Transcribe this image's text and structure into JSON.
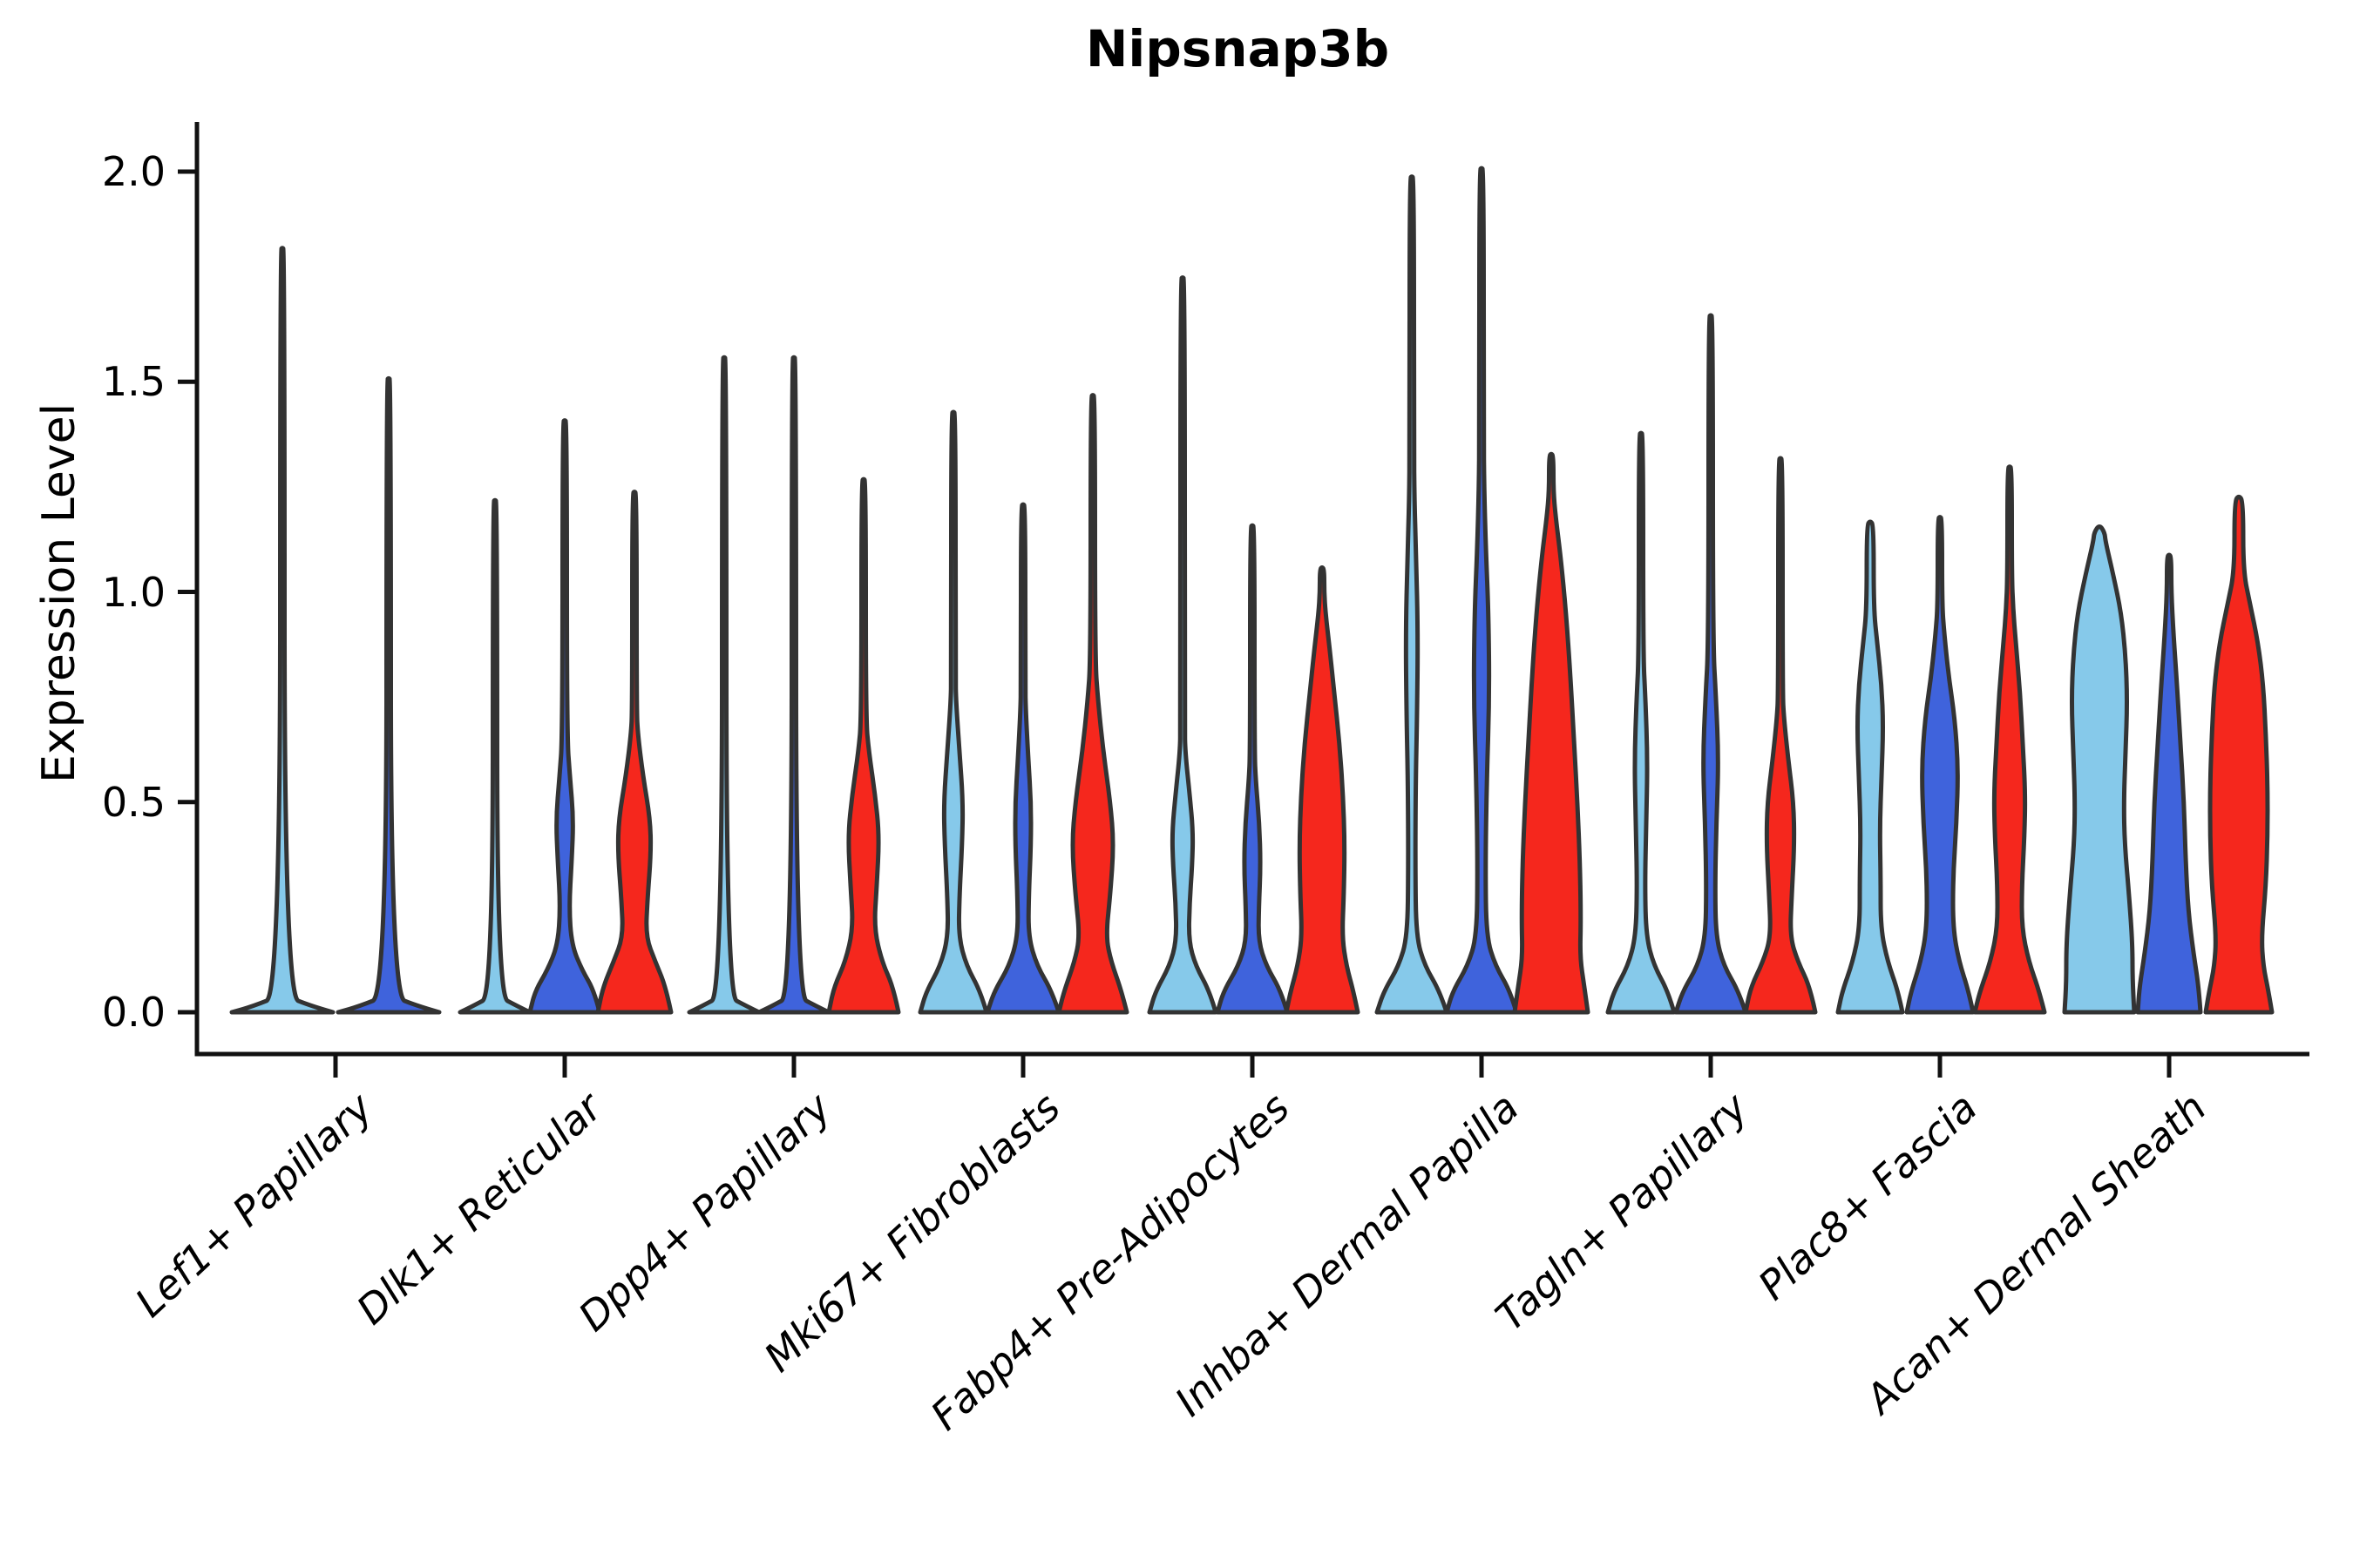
{
  "chart_data": {
    "type": "violin",
    "title": "Nipsnap3b",
    "xlabel": "",
    "ylabel": "Expression Level",
    "ylim": [
      0,
      2.1
    ],
    "yticks": [
      0,
      0.5,
      1,
      1.5,
      2
    ],
    "ytick_labels": [
      "0.0",
      "0.5",
      "1.0",
      "1.5",
      "2.0"
    ],
    "grid": false,
    "legend": "none",
    "axis_color": "#111111",
    "outline_color": "#333333",
    "categories": [
      "Lef1+ Papillary",
      "Dlk1+ Reticular",
      "Dpp4+ Papillary",
      "Mki67+ Fibroblasts",
      "Fabp4+ Pre-Adipocytes",
      "Inhba+ Dermal Papilla",
      "Tagln+ Papillary",
      "Plac8+ Fascia",
      "Acan+ Dermal Sheath"
    ],
    "conditions": [
      {
        "name": "sky-blue",
        "color": "#86C9EA"
      },
      {
        "name": "royal-blue",
        "color": "#3F63DC"
      },
      {
        "name": "red",
        "color": "#F5271D"
      }
    ],
    "violins": [
      {
        "category": 0,
        "condition": 0,
        "offset": -61,
        "max": 1.82,
        "profile": [
          [
            0,
            58
          ],
          [
            0.014,
            34
          ],
          [
            0.04,
            2.5
          ]
        ]
      },
      {
        "category": 0,
        "condition": 1,
        "offset": 61,
        "max": 1.51,
        "profile": [
          [
            0,
            58
          ],
          [
            0.014,
            34
          ],
          [
            0.04,
            2.5
          ]
        ]
      },
      {
        "category": 1,
        "condition": 0,
        "offset": -80,
        "max": 1.22,
        "profile": [
          [
            0,
            40
          ],
          [
            0.014,
            26
          ],
          [
            0.04,
            2.5
          ]
        ]
      },
      {
        "category": 1,
        "condition": 1,
        "offset": 0,
        "max": 1.41,
        "profile": [
          [
            0,
            40
          ],
          [
            0.05,
            34
          ],
          [
            0.1,
            20
          ],
          [
            0.16,
            8
          ],
          [
            0.25,
            5
          ],
          [
            0.36,
            8
          ],
          [
            0.46,
            10
          ],
          [
            0.56,
            6
          ],
          [
            0.66,
            2.5
          ]
        ]
      },
      {
        "category": 1,
        "condition": 2,
        "offset": 80,
        "max": 1.24,
        "profile": [
          [
            0,
            42
          ],
          [
            0.06,
            36
          ],
          [
            0.12,
            24
          ],
          [
            0.18,
            13
          ],
          [
            0.27,
            15
          ],
          [
            0.38,
            19
          ],
          [
            0.46,
            18
          ],
          [
            0.56,
            10
          ],
          [
            0.66,
            4
          ],
          [
            0.72,
            2.5
          ]
        ]
      },
      {
        "category": 2,
        "condition": 0,
        "offset": -80,
        "max": 1.56,
        "profile": [
          [
            0,
            40
          ],
          [
            0.014,
            26
          ],
          [
            0.04,
            2.5
          ]
        ]
      },
      {
        "category": 2,
        "condition": 1,
        "offset": 0,
        "max": 1.56,
        "profile": [
          [
            0,
            40
          ],
          [
            0.014,
            26
          ],
          [
            0.04,
            2.5
          ]
        ]
      },
      {
        "category": 2,
        "condition": 2,
        "offset": 80,
        "max": 1.27,
        "profile": [
          [
            0,
            40
          ],
          [
            0.06,
            34
          ],
          [
            0.12,
            21
          ],
          [
            0.2,
            12
          ],
          [
            0.3,
            15
          ],
          [
            0.42,
            18
          ],
          [
            0.52,
            13
          ],
          [
            0.62,
            6
          ],
          [
            0.7,
            2.5
          ]
        ]
      },
      {
        "category": 3,
        "condition": 0,
        "offset": -80,
        "max": 1.43,
        "profile": [
          [
            0,
            38
          ],
          [
            0.05,
            31
          ],
          [
            0.11,
            15
          ],
          [
            0.18,
            6
          ],
          [
            0.28,
            7
          ],
          [
            0.4,
            10
          ],
          [
            0.5,
            11
          ],
          [
            0.62,
            7
          ],
          [
            0.74,
            3
          ],
          [
            0.8,
            2.5
          ]
        ]
      },
      {
        "category": 3,
        "condition": 1,
        "offset": 0,
        "max": 1.21,
        "profile": [
          [
            0,
            41
          ],
          [
            0.05,
            33
          ],
          [
            0.11,
            16
          ],
          [
            0.18,
            6
          ],
          [
            0.28,
            6.5
          ],
          [
            0.4,
            9
          ],
          [
            0.5,
            9
          ],
          [
            0.6,
            6
          ],
          [
            0.72,
            3
          ],
          [
            0.78,
            2.5
          ]
        ]
      },
      {
        "category": 3,
        "condition": 2,
        "offset": 80,
        "max": 1.47,
        "profile": [
          [
            0,
            39
          ],
          [
            0.05,
            33
          ],
          [
            0.12,
            21
          ],
          [
            0.18,
            15
          ],
          [
            0.28,
            20
          ],
          [
            0.4,
            24
          ],
          [
            0.5,
            20
          ],
          [
            0.62,
            12
          ],
          [
            0.74,
            6
          ],
          [
            0.84,
            2.5
          ]
        ]
      },
      {
        "category": 4,
        "condition": 0,
        "offset": -80,
        "max": 1.75,
        "profile": [
          [
            0,
            38
          ],
          [
            0.05,
            31
          ],
          [
            0.11,
            15
          ],
          [
            0.17,
            7
          ],
          [
            0.26,
            8
          ],
          [
            0.35,
            11
          ],
          [
            0.43,
            12
          ],
          [
            0.52,
            8
          ],
          [
            0.62,
            3
          ],
          [
            0.68,
            2.5
          ]
        ]
      },
      {
        "category": 4,
        "condition": 1,
        "offset": 0,
        "max": 1.16,
        "profile": [
          [
            0,
            40
          ],
          [
            0.05,
            33
          ],
          [
            0.11,
            16
          ],
          [
            0.17,
            7
          ],
          [
            0.25,
            7.5
          ],
          [
            0.35,
            9.5
          ],
          [
            0.45,
            8
          ],
          [
            0.55,
            4
          ],
          [
            0.62,
            2.5
          ]
        ]
      },
      {
        "category": 4,
        "condition": 2,
        "offset": 80,
        "max": 1.06,
        "profile": [
          [
            0,
            41
          ],
          [
            0.05,
            36
          ],
          [
            0.11,
            28
          ],
          [
            0.18,
            23
          ],
          [
            0.28,
            25
          ],
          [
            0.4,
            26
          ],
          [
            0.52,
            24
          ],
          [
            0.64,
            20
          ],
          [
            0.76,
            14
          ],
          [
            0.86,
            9
          ],
          [
            0.95,
            4
          ],
          [
            1.0,
            2.5
          ]
        ]
      },
      {
        "category": 5,
        "condition": 0,
        "offset": -80,
        "max": 1.99,
        "profile": [
          [
            0,
            40
          ],
          [
            0.05,
            32
          ],
          [
            0.11,
            15
          ],
          [
            0.18,
            5
          ],
          [
            0.35,
            4
          ],
          [
            0.55,
            4.5
          ],
          [
            0.7,
            6
          ],
          [
            0.9,
            7
          ],
          [
            1.08,
            5
          ],
          [
            1.22,
            3
          ],
          [
            1.35,
            2.5
          ]
        ]
      },
      {
        "category": 5,
        "condition": 1,
        "offset": 0,
        "max": 2.01,
        "profile": [
          [
            0,
            40
          ],
          [
            0.05,
            33
          ],
          [
            0.11,
            16
          ],
          [
            0.18,
            5.5
          ],
          [
            0.35,
            4.5
          ],
          [
            0.55,
            6
          ],
          [
            0.75,
            9
          ],
          [
            0.95,
            8
          ],
          [
            1.1,
            5
          ],
          [
            1.25,
            3
          ],
          [
            1.38,
            2.5
          ]
        ]
      },
      {
        "category": 5,
        "condition": 2,
        "offset": 80,
        "max": 1.33,
        "profile": [
          [
            0,
            42
          ],
          [
            0.06,
            38
          ],
          [
            0.13,
            33
          ],
          [
            0.22,
            34
          ],
          [
            0.35,
            33
          ],
          [
            0.5,
            30
          ],
          [
            0.65,
            26
          ],
          [
            0.8,
            22
          ],
          [
            0.95,
            17
          ],
          [
            1.08,
            11
          ],
          [
            1.18,
            5
          ],
          [
            1.24,
            2.5
          ]
        ]
      },
      {
        "category": 6,
        "condition": 0,
        "offset": -80,
        "max": 1.38,
        "profile": [
          [
            0,
            38
          ],
          [
            0.05,
            31
          ],
          [
            0.11,
            15
          ],
          [
            0.18,
            6
          ],
          [
            0.3,
            4.5
          ],
          [
            0.45,
            6
          ],
          [
            0.6,
            7.5
          ],
          [
            0.75,
            5
          ],
          [
            0.85,
            2.5
          ]
        ]
      },
      {
        "category": 6,
        "condition": 1,
        "offset": 0,
        "max": 1.66,
        "profile": [
          [
            0,
            40
          ],
          [
            0.05,
            32
          ],
          [
            0.11,
            15
          ],
          [
            0.18,
            6
          ],
          [
            0.3,
            5
          ],
          [
            0.45,
            6.5
          ],
          [
            0.6,
            9
          ],
          [
            0.75,
            6
          ],
          [
            0.88,
            2.5
          ]
        ]
      },
      {
        "category": 6,
        "condition": 2,
        "offset": 80,
        "max": 1.32,
        "profile": [
          [
            0,
            40
          ],
          [
            0.06,
            34
          ],
          [
            0.12,
            20
          ],
          [
            0.18,
            11
          ],
          [
            0.28,
            13
          ],
          [
            0.4,
            16
          ],
          [
            0.5,
            15
          ],
          [
            0.6,
            9
          ],
          [
            0.7,
            4
          ],
          [
            0.76,
            2.5
          ]
        ]
      },
      {
        "category": 7,
        "condition": 0,
        "offset": -80,
        "max": 1.17,
        "profile": [
          [
            0,
            37
          ],
          [
            0.05,
            32
          ],
          [
            0.12,
            20
          ],
          [
            0.2,
            12
          ],
          [
            0.32,
            12
          ],
          [
            0.44,
            11
          ],
          [
            0.56,
            13
          ],
          [
            0.68,
            15
          ],
          [
            0.78,
            13
          ],
          [
            0.88,
            8
          ],
          [
            0.96,
            4
          ]
        ]
      },
      {
        "category": 7,
        "condition": 1,
        "offset": 0,
        "max": 1.18,
        "profile": [
          [
            0,
            38
          ],
          [
            0.05,
            33
          ],
          [
            0.12,
            22
          ],
          [
            0.2,
            15
          ],
          [
            0.32,
            15
          ],
          [
            0.45,
            19
          ],
          [
            0.58,
            21
          ],
          [
            0.7,
            17
          ],
          [
            0.8,
            10
          ],
          [
            0.9,
            5
          ],
          [
            0.97,
            2.5
          ]
        ]
      },
      {
        "category": 7,
        "condition": 2,
        "offset": 80,
        "max": 1.3,
        "profile": [
          [
            0,
            40
          ],
          [
            0.05,
            34
          ],
          [
            0.12,
            22
          ],
          [
            0.2,
            14
          ],
          [
            0.3,
            14
          ],
          [
            0.42,
            17
          ],
          [
            0.52,
            18
          ],
          [
            0.64,
            15
          ],
          [
            0.76,
            12
          ],
          [
            0.88,
            7
          ],
          [
            0.96,
            4
          ],
          [
            1.04,
            2.5
          ]
        ]
      },
      {
        "category": 8,
        "condition": 0,
        "offset": -80,
        "max": 1.16,
        "profile": [
          [
            0,
            40
          ],
          [
            0.07,
            38
          ],
          [
            0.16,
            38
          ],
          [
            0.28,
            34
          ],
          [
            0.4,
            29
          ],
          [
            0.5,
            28
          ],
          [
            0.62,
            30
          ],
          [
            0.74,
            32
          ],
          [
            0.85,
            30
          ],
          [
            0.95,
            25
          ],
          [
            1.04,
            16
          ],
          [
            1.12,
            7
          ]
        ]
      },
      {
        "category": 8,
        "condition": 1,
        "offset": 0,
        "max": 1.09,
        "profile": [
          [
            0,
            36
          ],
          [
            0.06,
            34
          ],
          [
            0.14,
            28
          ],
          [
            0.24,
            22
          ],
          [
            0.36,
            19
          ],
          [
            0.5,
            17
          ],
          [
            0.64,
            13
          ],
          [
            0.78,
            9
          ],
          [
            0.9,
            5
          ],
          [
            1.0,
            2.5
          ]
        ]
      },
      {
        "category": 8,
        "condition": 2,
        "offset": 80,
        "max": 1.23,
        "profile": [
          [
            0,
            38
          ],
          [
            0.05,
            34
          ],
          [
            0.11,
            28
          ],
          [
            0.18,
            26
          ],
          [
            0.3,
            31
          ],
          [
            0.42,
            33
          ],
          [
            0.54,
            33
          ],
          [
            0.66,
            31
          ],
          [
            0.78,
            28
          ],
          [
            0.88,
            22
          ],
          [
            0.97,
            13
          ],
          [
            1.05,
            5
          ]
        ]
      }
    ]
  }
}
